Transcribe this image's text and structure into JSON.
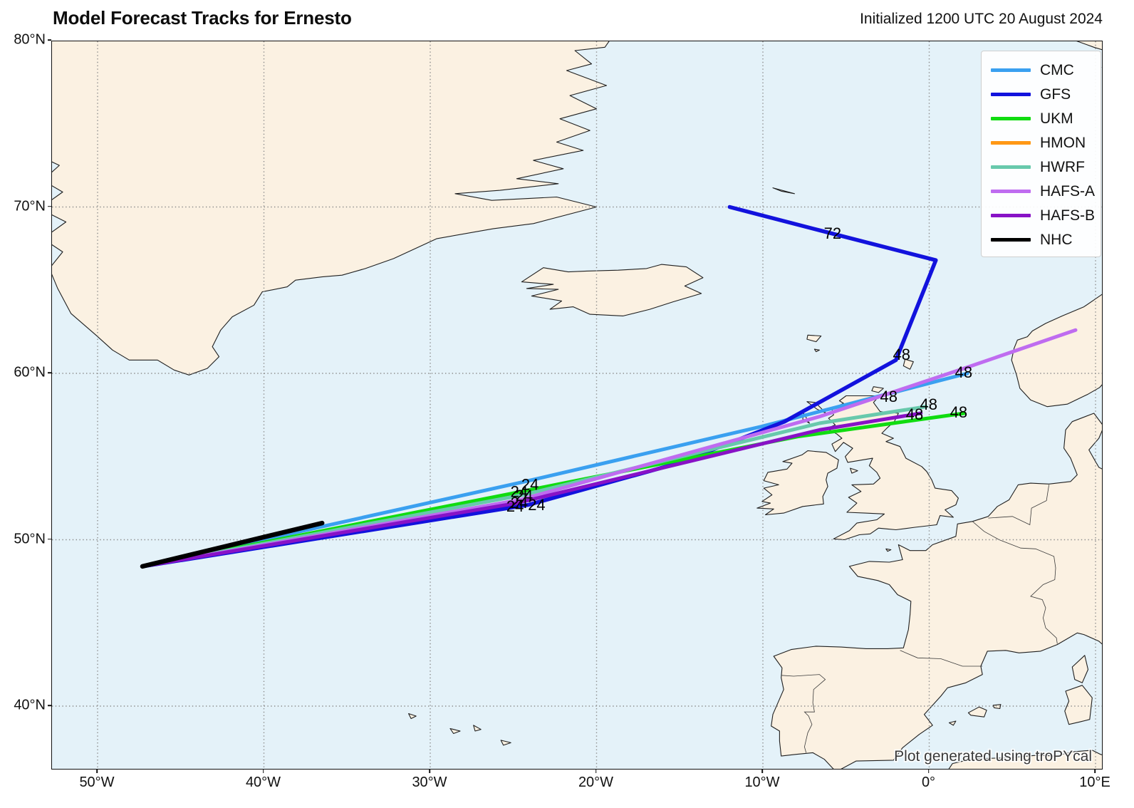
{
  "title": "Model Forecast Tracks for Ernesto",
  "initialized": "Initialized 1200 UTC 20 August 2024",
  "credit": "Plot generated using troPYcal",
  "axes": {
    "lon_ticks": [
      {
        "label": "50°W",
        "lon": -50
      },
      {
        "label": "40°W",
        "lon": -40
      },
      {
        "label": "30°W",
        "lon": -30
      },
      {
        "label": "20°W",
        "lon": -20
      },
      {
        "label": "10°W",
        "lon": -10
      },
      {
        "label": "0°",
        "lon": 0
      },
      {
        "label": "10°E",
        "lon": 10
      }
    ],
    "lat_ticks": [
      {
        "label": "80°N",
        "lat": 80
      },
      {
        "label": "70°N",
        "lat": 70
      },
      {
        "label": "60°N",
        "lat": 60
      },
      {
        "label": "50°N",
        "lat": 50
      },
      {
        "label": "40°N",
        "lat": 40
      }
    ]
  },
  "legend": {
    "items": [
      {
        "label": "CMC",
        "color": "#3aa0f0"
      },
      {
        "label": "GFS",
        "color": "#1212dd"
      },
      {
        "label": "UKM",
        "color": "#10dc10"
      },
      {
        "label": "HMON",
        "color": "#ff9815"
      },
      {
        "label": "HWRF",
        "color": "#68c9ac"
      },
      {
        "label": "HAFS-A",
        "color": "#bf6cf0"
      },
      {
        "label": "HAFS-B",
        "color": "#8812c6"
      },
      {
        "label": "NHC",
        "color": "#000000"
      }
    ]
  },
  "map": {
    "extent": {
      "lon_min": -52.7,
      "lon_max": 10.4,
      "lat_min": 36.2,
      "lat_max": 80.0
    },
    "colors": {
      "ocean": "#e4f2f9",
      "land": "#fbf1e2",
      "coast": "#1f1f1f",
      "grid": "#8c8c8c"
    }
  },
  "chart_data": {
    "type": "line",
    "title": "Model Forecast Tracks for Ernesto",
    "description": "Forecast track positions [longitude, latitude] per model, initialized 1200 UTC 20 August 2024",
    "tracks": [
      {
        "model": "CMC",
        "color": "#3aa0f0",
        "width": 5,
        "points": [
          [
            -47.3,
            48.4
          ],
          [
            -24.3,
            53.5
          ],
          [
            -10.1,
            56.8
          ],
          [
            2.3,
            60.0
          ]
        ]
      },
      {
        "model": "GFS",
        "color": "#1212dd",
        "width": 5.5,
        "points": [
          [
            -47.3,
            48.4
          ],
          [
            -24.1,
            52.1
          ],
          [
            -15.1,
            54.6
          ],
          [
            -8.7,
            57.1
          ],
          [
            -2.0,
            60.8
          ],
          [
            0.4,
            66.8
          ],
          [
            -6.6,
            68.6
          ],
          [
            -12.0,
            70.0
          ]
        ]
      },
      {
        "model": "UKM",
        "color": "#10dc10",
        "width": 5,
        "points": [
          [
            -47.3,
            48.4
          ],
          [
            -24.5,
            52.9
          ],
          [
            -7.9,
            56.2
          ],
          [
            2.1,
            57.6
          ]
        ]
      },
      {
        "model": "HMON",
        "color": "#ff9815",
        "width": 5,
        "points": []
      },
      {
        "model": "HWRF",
        "color": "#68c9ac",
        "width": 5,
        "points": [
          [
            -47.3,
            48.4
          ],
          [
            -24.4,
            52.7
          ],
          [
            -6.6,
            57.0
          ],
          [
            -0.2,
            58.0
          ]
        ]
      },
      {
        "model": "HAFS-A",
        "color": "#bf6cf0",
        "width": 5,
        "points": [
          [
            -47.3,
            48.4
          ],
          [
            -24.6,
            52.4
          ],
          [
            -6.6,
            57.4
          ],
          [
            2.1,
            60.3
          ],
          [
            8.8,
            62.6
          ]
        ]
      },
      {
        "model": "HAFS-B",
        "color": "#8812c6",
        "width": 5,
        "points": [
          [
            -47.3,
            48.4
          ],
          [
            -24.8,
            52.2
          ],
          [
            -6.6,
            56.6
          ],
          [
            -0.5,
            57.6
          ]
        ]
      },
      {
        "model": "NHC",
        "color": "#000000",
        "width": 6.5,
        "points": [
          [
            -47.3,
            48.4
          ],
          [
            -36.5,
            51.0
          ]
        ]
      }
    ],
    "hour_labels": [
      {
        "text": "24",
        "lon": -24.0,
        "lat": 53.3
      },
      {
        "text": "24",
        "lon": -24.65,
        "lat": 52.86
      },
      {
        "text": "24",
        "lon": -24.35,
        "lat": 52.64
      },
      {
        "text": "24",
        "lon": -24.65,
        "lat": 52.21
      },
      {
        "text": "24",
        "lon": -24.9,
        "lat": 51.99
      },
      {
        "text": "24",
        "lon": -23.6,
        "lat": 52.08
      },
      {
        "text": "48",
        "lon": -1.66,
        "lat": 61.11
      },
      {
        "text": "48",
        "lon": 2.07,
        "lat": 60.04
      },
      {
        "text": "48",
        "lon": -2.43,
        "lat": 58.59
      },
      {
        "text": "48",
        "lon": -0.03,
        "lat": 58.12
      },
      {
        "text": "48",
        "lon": -0.88,
        "lat": 57.52
      },
      {
        "text": "48",
        "lon": 1.77,
        "lat": 57.64
      },
      {
        "text": "72",
        "lon": -5.81,
        "lat": 68.39
      }
    ]
  }
}
